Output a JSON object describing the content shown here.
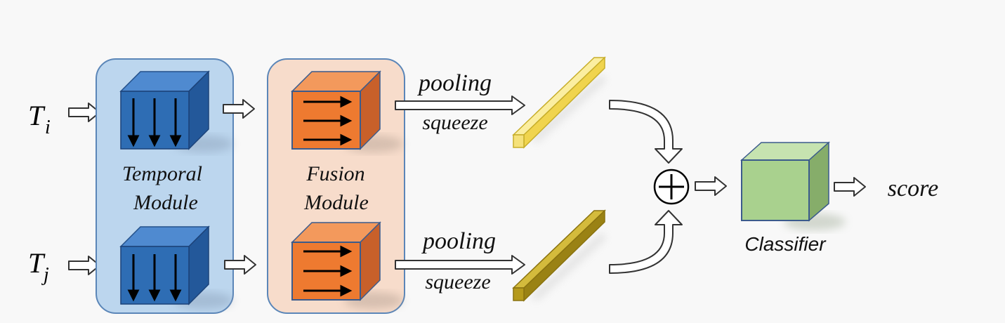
{
  "inputs": {
    "top": {
      "base": "T",
      "sub": "i"
    },
    "bottom": {
      "base": "T",
      "sub": "j"
    }
  },
  "temporal_module": {
    "line1": "Temporal",
    "line2": "Module",
    "color": "#2e6db4",
    "panel_color": "#bcd6ee"
  },
  "fusion_module": {
    "line1": "Fusion",
    "line2": "Module",
    "color": "#ee7a30",
    "panel_color": "#f7dccb"
  },
  "branch_top": {
    "label_above": "pooling",
    "label_below": "squeeze",
    "bar_color": "#f5e17a"
  },
  "branch_bottom": {
    "label_above": "pooling",
    "label_below": "squeeze",
    "bar_color": "#b59a1c"
  },
  "combine": {
    "symbol": "+"
  },
  "classifier": {
    "label": "Classifier",
    "color": "#a9d18e"
  },
  "output": {
    "label": "score"
  }
}
